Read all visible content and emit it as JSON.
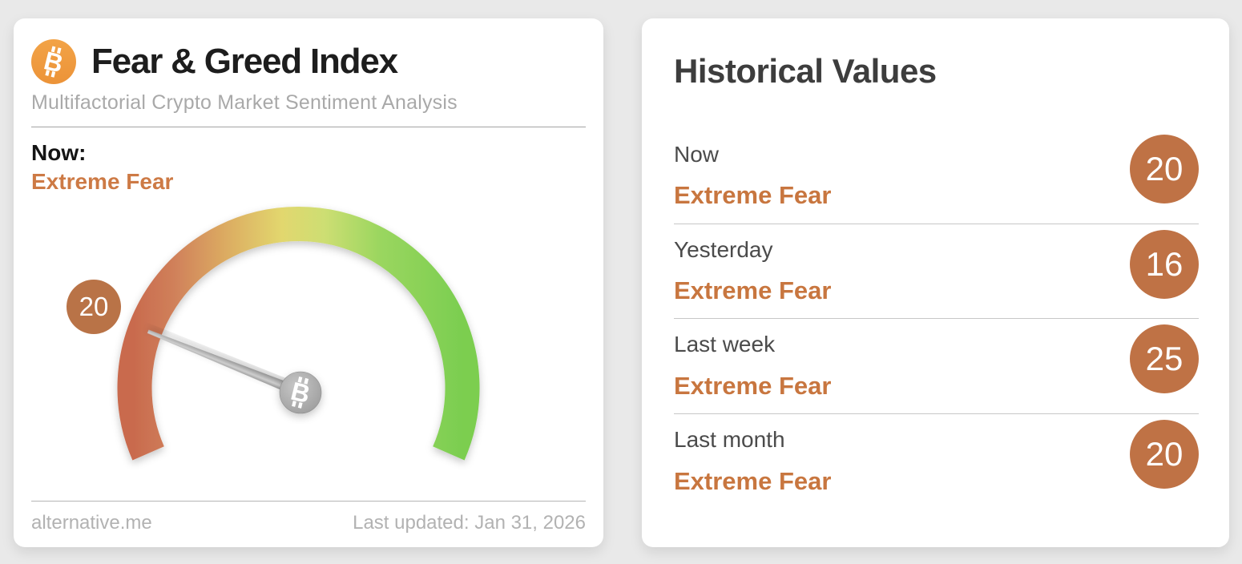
{
  "page": {
    "background_color": "#e9e9e9"
  },
  "fng_card": {
    "title": "Fear & Greed Index",
    "subtitle": "Multifactorial Crypto Market Sentiment Analysis",
    "now_label": "Now:",
    "now_sentiment": "Extreme Fear",
    "gauge": {
      "value": 20,
      "min": 0,
      "max": 100,
      "badge_value": "20",
      "start_angle_deg": 156.4,
      "sweep_deg": 227.2
    },
    "footer": {
      "site": "alternative.me",
      "last_updated": "Last updated: Jan 31, 2026"
    }
  },
  "historical_card": {
    "title": "Historical Values",
    "rows": [
      {
        "label": "Now",
        "sentiment": "Extreme Fear",
        "value": "20"
      },
      {
        "label": "Yesterday",
        "sentiment": "Extreme Fear",
        "value": "16"
      },
      {
        "label": "Last week",
        "sentiment": "Extreme Fear",
        "value": "25"
      },
      {
        "label": "Last month",
        "sentiment": "Extreme Fear",
        "value": "20"
      }
    ]
  },
  "icons": {
    "bitcoin_glyph": "B"
  },
  "colors": {
    "brand_orange": "#f09a40",
    "sentiment_orange_left": "#cd7a45",
    "sentiment_orange_right": "#c8763f",
    "badge_orange_left": "#b97347",
    "badge_orange_right": "#bf7245",
    "gauge_gradient": [
      "#c96b4e",
      "#d0805a",
      "#dcac62",
      "#e2d76e",
      "#cdde73",
      "#9ad65f",
      "#7bce50"
    ],
    "needle_gray": "#a8a8a8",
    "title_black": "#1d1d1d",
    "subtitle_gray": "#a9a9a9",
    "footer_gray": "#b2b2b2"
  },
  "chart_data": {
    "type": "gauge",
    "title": "Fear & Greed Index",
    "value": 20,
    "value_label": "Extreme Fear",
    "range": [
      0,
      100
    ],
    "scale": "red (Extreme Fear, left) through yellow (top) to green (Extreme Greed, right), ~227 degree arc",
    "historical": [
      {
        "period": "Now",
        "classification": "Extreme Fear",
        "value": 20
      },
      {
        "period": "Yesterday",
        "classification": "Extreme Fear",
        "value": 16
      },
      {
        "period": "Last week",
        "classification": "Extreme Fear",
        "value": 25
      },
      {
        "period": "Last month",
        "classification": "Extreme Fear",
        "value": 20
      }
    ]
  }
}
